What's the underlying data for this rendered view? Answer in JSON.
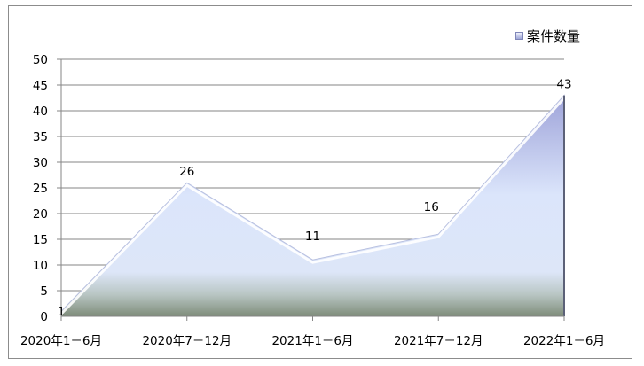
{
  "chart_data": {
    "type": "area",
    "title": "",
    "xlabel": "",
    "ylabel": "",
    "categories": [
      "2020年1－6月",
      "2020年7－12月",
      "2021年1－6月",
      "2021年7－12月",
      "2022年1－6月"
    ],
    "series": [
      {
        "name": "案件数量",
        "values": [
          1,
          26,
          11,
          16,
          43
        ]
      }
    ],
    "ylim": [
      0,
      50
    ],
    "yticks": [
      0,
      5,
      10,
      15,
      20,
      25,
      30,
      35,
      40,
      45,
      50
    ],
    "grid": true,
    "legend_position": "top-right",
    "data_labels": [
      "1",
      "26",
      "11",
      "16",
      "43"
    ]
  },
  "legend": {
    "label": "案件数量"
  },
  "colors": {
    "area_top": "#a2a8dc",
    "area_mid": "#dfe8fb",
    "area_bottom": "#7d8c78",
    "grid": "#868686"
  }
}
